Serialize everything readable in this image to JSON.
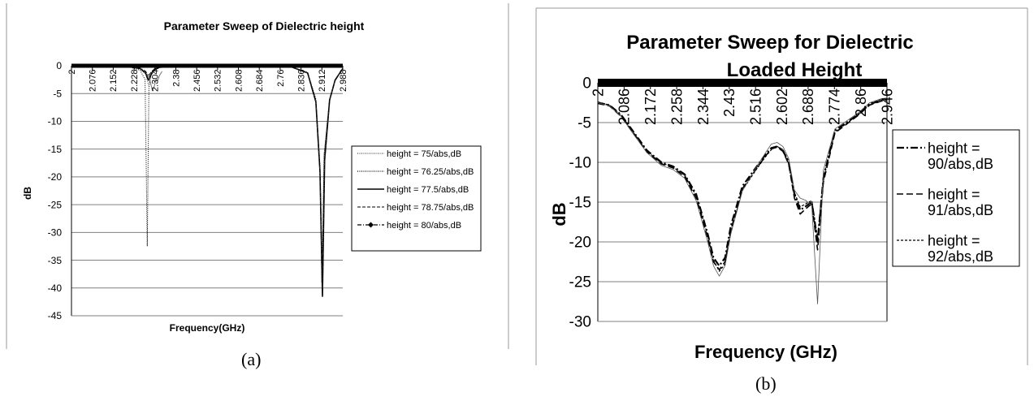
{
  "chart_data": [
    {
      "type": "line",
      "title": "Parameter Sweep of Dielectric height",
      "xlabel": "Frequency(GHz)",
      "ylabel": "dB",
      "ylim": [
        -45,
        0
      ],
      "yticks": [
        "0",
        "-5",
        "-10",
        "-15",
        "-20",
        "-25",
        "-30",
        "-35",
        "-40",
        "-45"
      ],
      "xticks": [
        "2",
        "2.076",
        "2.152",
        "2.228",
        "2.304",
        "2.38",
        "2.456",
        "2.532",
        "2.608",
        "2.684",
        "2.76",
        "2.836",
        "2.912",
        "2.988"
      ],
      "xlim": [
        2,
        2.988
      ],
      "grid": true,
      "legend_position": "right",
      "caption": "(a)",
      "series": [
        {
          "name": "height = 75/abs,dB",
          "style": "dotted-thin",
          "x": [
            2.0,
            2.2,
            2.25,
            2.27,
            2.28,
            2.29,
            2.3,
            2.32,
            2.36,
            2.5,
            2.8,
            2.86,
            2.89,
            2.905,
            2.912,
            2.92,
            2.94,
            2.96,
            2.988
          ],
          "y": [
            0,
            -0.1,
            -0.6,
            -1.5,
            -3.5,
            -1.8,
            -0.8,
            -0.3,
            -0.1,
            0,
            -0.2,
            -1.2,
            -6,
            -18,
            -40,
            -16,
            -6,
            -2.5,
            -0.5
          ]
        },
        {
          "name": "height = 76.25/abs,dB",
          "style": "dotted",
          "x": [
            2.0,
            2.2,
            2.25,
            2.268,
            2.276,
            2.282,
            2.29,
            2.3,
            2.32,
            2.36,
            2.5,
            2.8,
            2.86,
            2.89,
            2.905,
            2.912,
            2.92,
            2.94,
            2.96,
            2.988
          ],
          "y": [
            0,
            -0.1,
            -0.8,
            -2.5,
            -32.5,
            -4,
            -1.2,
            -0.6,
            -0.2,
            -0.1,
            0,
            -0.2,
            -1.2,
            -6,
            -18,
            -39,
            -16,
            -6,
            -2.5,
            -0.5
          ]
        },
        {
          "name": "height = 77.5/abs,dB",
          "style": "solid",
          "x": [
            2.0,
            2.2,
            2.25,
            2.27,
            2.28,
            2.29,
            2.3,
            2.32,
            2.36,
            2.5,
            2.8,
            2.86,
            2.89,
            2.905,
            2.914,
            2.922,
            2.94,
            2.96,
            2.988
          ],
          "y": [
            0,
            -0.1,
            -0.5,
            -1.3,
            -2.6,
            -1.6,
            -0.8,
            -0.3,
            -0.1,
            0,
            -0.2,
            -1.3,
            -6.5,
            -19,
            -41.5,
            -17,
            -6.2,
            -2.6,
            -0.5
          ]
        },
        {
          "name": "height = 78.75/abs,dB",
          "style": "dashed",
          "x": [
            2.0,
            2.2,
            2.25,
            2.27,
            2.28,
            2.29,
            2.3,
            2.32,
            2.36,
            2.5,
            2.8,
            2.86,
            2.89,
            2.905,
            2.914,
            2.922,
            2.94,
            2.96,
            2.988
          ],
          "y": [
            0,
            -0.1,
            -0.5,
            -1.2,
            -2.2,
            -1.5,
            -0.7,
            -0.3,
            -0.1,
            0,
            -0.2,
            -1.3,
            -6.5,
            -19,
            -40,
            -17,
            -6.2,
            -2.6,
            -0.5
          ]
        },
        {
          "name": "height = 80/abs,dB",
          "style": "dashdot",
          "x": [
            2.0,
            2.2,
            2.25,
            2.27,
            2.28,
            2.29,
            2.3,
            2.32,
            2.36,
            2.5,
            2.8,
            2.86,
            2.89,
            2.905,
            2.914,
            2.922,
            2.94,
            2.96,
            2.988
          ],
          "y": [
            0,
            -0.1,
            -0.4,
            -1,
            -1.8,
            -1.2,
            -0.6,
            -0.3,
            -0.1,
            0,
            -0.2,
            -1.3,
            -6.5,
            -19,
            -39,
            -17,
            -6.2,
            -2.6,
            -0.5
          ]
        },
        {
          "name": "",
          "style": "gray-ref",
          "x": [
            2.28,
            2.285,
            2.29,
            2.295,
            2.3,
            2.305,
            2.31,
            2.315,
            2.32,
            2.33
          ],
          "y": [
            -1.5,
            -2.5,
            -3.5,
            -4.5,
            -4,
            -3,
            -2.5,
            -2.6,
            -1.8,
            -1
          ]
        }
      ]
    },
    {
      "type": "line",
      "title": "Parameter Sweep for Dielectric\nLoaded Height",
      "xlabel": "Frequency (GHz)",
      "ylabel": "dB",
      "ylim": [
        -30,
        0
      ],
      "yticks": [
        "0",
        "-5",
        "-10",
        "-15",
        "-20",
        "-25",
        "-30"
      ],
      "xticks": [
        "2",
        "2.086",
        "2.172",
        "2.258",
        "2.344",
        "2.43",
        "2.516",
        "2.602",
        "2.688",
        "2.774",
        "2.86",
        "2.946"
      ],
      "xlim": [
        2,
        3.0
      ],
      "grid": true,
      "legend_position": "right",
      "caption": "(b)",
      "series": [
        {
          "name": "height = 90/abs,dB",
          "style": "dashdot-thick",
          "x": [
            2.0,
            2.04,
            2.08,
            2.12,
            2.17,
            2.22,
            2.26,
            2.3,
            2.34,
            2.38,
            2.4,
            2.42,
            2.44,
            2.46,
            2.5,
            2.55,
            2.58,
            2.6,
            2.62,
            2.64,
            2.66,
            2.68,
            2.7,
            2.72,
            2.74,
            2.76,
            2.78,
            2.82,
            2.86,
            2.9,
            2.94,
            2.98,
            3.0
          ],
          "y": [
            -2.5,
            -2.8,
            -4,
            -6,
            -8.5,
            -10,
            -10.5,
            -11.5,
            -14,
            -19,
            -22,
            -23,
            -22,
            -18,
            -13,
            -10.5,
            -9,
            -8.2,
            -8,
            -8.5,
            -10,
            -14,
            -16,
            -15.5,
            -15,
            -20,
            -12,
            -6,
            -5,
            -4,
            -2.7,
            -2.2,
            -2.1
          ]
        },
        {
          "name": "height = 91/abs,dB",
          "style": "longdash",
          "x": [
            2.0,
            2.04,
            2.08,
            2.12,
            2.17,
            2.22,
            2.26,
            2.3,
            2.34,
            2.38,
            2.4,
            2.42,
            2.44,
            2.46,
            2.5,
            2.55,
            2.58,
            2.6,
            2.62,
            2.64,
            2.66,
            2.68,
            2.7,
            2.72,
            2.74,
            2.76,
            2.78,
            2.82,
            2.86,
            2.9,
            2.94,
            2.98,
            3.0
          ],
          "y": [
            -2.6,
            -2.9,
            -4.2,
            -6.2,
            -8.7,
            -10.2,
            -10.7,
            -11.8,
            -14.5,
            -19.5,
            -22.5,
            -23.5,
            -22.5,
            -18.5,
            -13.3,
            -10.7,
            -9.2,
            -8.3,
            -8.1,
            -8.6,
            -10.2,
            -14.5,
            -16.5,
            -15.8,
            -15.2,
            -21,
            -12.5,
            -6.3,
            -5.2,
            -4.1,
            -2.8,
            -2.3,
            -2.2
          ]
        },
        {
          "name": "height = 92/abs,dB",
          "style": "shortdash",
          "x": [
            2.0,
            2.04,
            2.08,
            2.12,
            2.17,
            2.22,
            2.26,
            2.3,
            2.34,
            2.38,
            2.4,
            2.42,
            2.44,
            2.46,
            2.5,
            2.55,
            2.58,
            2.6,
            2.62,
            2.64,
            2.66,
            2.68,
            2.7,
            2.72,
            2.74,
            2.76,
            2.78,
            2.82,
            2.86,
            2.9,
            2.94,
            2.98,
            3.0
          ],
          "y": [
            -2.4,
            -2.8,
            -4.1,
            -6.1,
            -8.6,
            -10.1,
            -10.6,
            -11.6,
            -14.2,
            -19.2,
            -22.3,
            -23.7,
            -22.8,
            -18.8,
            -13.5,
            -10.8,
            -9.3,
            -8.4,
            -8,
            -8.4,
            -9.8,
            -13.8,
            -15.6,
            -15.2,
            -14.8,
            -19.5,
            -11.8,
            -6.2,
            -5.1,
            -4,
            -2.6,
            -2.1,
            -2
          ]
        },
        {
          "name": "",
          "style": "thin-gray",
          "x": [
            2.0,
            2.04,
            2.08,
            2.12,
            2.17,
            2.22,
            2.26,
            2.3,
            2.34,
            2.38,
            2.4,
            2.42,
            2.44,
            2.46,
            2.5,
            2.55,
            2.58,
            2.6,
            2.62,
            2.64,
            2.66,
            2.68,
            2.7,
            2.72,
            2.74,
            2.76,
            2.78,
            2.82,
            2.86,
            2.9,
            2.94,
            2.98,
            3.0
          ],
          "y": [
            -2.5,
            -2.9,
            -4.2,
            -6.3,
            -8.8,
            -10.4,
            -10.9,
            -12,
            -14.8,
            -20,
            -23,
            -24.3,
            -23,
            -19,
            -13.6,
            -10.5,
            -8.8,
            -7.7,
            -7.5,
            -8,
            -9.5,
            -13.5,
            -14.5,
            -14.8,
            -15.5,
            -27.8,
            -11,
            -5.8,
            -4.8,
            -3.8,
            -2.5,
            -2,
            -1.9
          ]
        }
      ]
    }
  ]
}
